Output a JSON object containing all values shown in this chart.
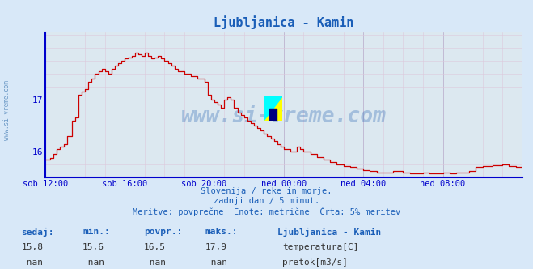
{
  "title": "Ljubljanica - Kamin",
  "title_color": "#1a5eb8",
  "bg_color": "#d8e8f8",
  "plot_bg_color": "#dce8f0",
  "grid_color_major": "#b8a8c8",
  "grid_color_minor": "#dcc8dc",
  "line_color": "#cc0000",
  "axis_color": "#0000cc",
  "text_color": "#1a5eb8",
  "xlabel_ticks": [
    "sob 12:00",
    "sob 16:00",
    "sob 20:00",
    "ned 00:00",
    "ned 04:00",
    "ned 08:00"
  ],
  "ylabel_ticks": [
    16,
    17
  ],
  "ylim": [
    15.5,
    18.3
  ],
  "xlim": [
    0,
    288
  ],
  "tick_positions_x": [
    0,
    48,
    96,
    144,
    192,
    240
  ],
  "watermark": "www.si-vreme.com",
  "subtitle1": "Slovenija / reke in morje.",
  "subtitle2": "zadnji dan / 5 minut.",
  "subtitle3": "Meritve: povprečne  Enote: metrične  Črta: 5% meritev",
  "stats_headers": [
    "sedaj:",
    "min.:",
    "povpr.:",
    "maks.:"
  ],
  "stats_values_temp": [
    "15,8",
    "15,6",
    "16,5",
    "17,9"
  ],
  "stats_values_pretok": [
    "-nan",
    "-nan",
    "-nan",
    "-nan"
  ],
  "legend_label1": "temperatura[C]",
  "legend_label2": "pretok[m3/s]",
  "legend_color1": "#cc0000",
  "legend_color2": "#00aa00",
  "station_label": "Ljubljanica - Kamin"
}
